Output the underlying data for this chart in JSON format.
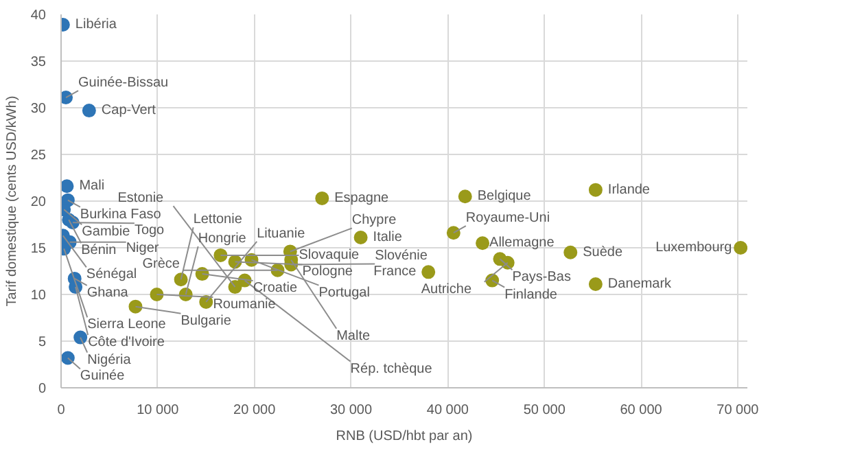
{
  "chart_data": {
    "type": "scatter",
    "xlabel": "RNB (USD/hbt par an)",
    "ylabel": "Tarif domestique (cents USD/kWh)",
    "xlim": [
      0,
      71000
    ],
    "ylim": [
      0,
      40
    ],
    "xticks": [
      {
        "value": 0,
        "label": "0"
      },
      {
        "value": 10000,
        "label": "10 000"
      },
      {
        "value": 20000,
        "label": "20 000"
      },
      {
        "value": 30000,
        "label": "30 000"
      },
      {
        "value": 40000,
        "label": "40 000"
      },
      {
        "value": 50000,
        "label": "50 000"
      },
      {
        "value": 60000,
        "label": "60 000"
      },
      {
        "value": 70000,
        "label": "70 000"
      }
    ],
    "yticks": [
      0,
      5,
      10,
      15,
      20,
      25,
      30,
      35,
      40
    ],
    "grid": true,
    "marker": "circle",
    "series": [
      {
        "color": "#2e75b6",
        "x": [
          200,
          500,
          2900,
          600,
          700,
          300,
          800,
          1200,
          200,
          900,
          300,
          1400,
          1500,
          2000,
          700
        ],
        "values": [
          38.9,
          31.1,
          29.7,
          21.6,
          20.1,
          19.1,
          18.0,
          17.7,
          16.3,
          15.6,
          14.9,
          11.7,
          10.8,
          5.4,
          3.2
        ]
      },
      {
        "color": "#9a9a1a",
        "x": [
          7700,
          9900,
          12900,
          15000,
          12400,
          14600,
          16500,
          18000,
          18000,
          19700,
          22400,
          23700,
          23800,
          23800,
          19000,
          27000,
          31000,
          38000,
          41800,
          55300,
          40600,
          43600,
          52700,
          45400,
          46200,
          44600,
          55300,
          70300
        ],
        "values": [
          8.7,
          10.0,
          10.0,
          9.2,
          11.6,
          12.2,
          14.2,
          13.5,
          10.8,
          13.7,
          12.6,
          14.6,
          13.7,
          13.2,
          11.5,
          20.3,
          16.1,
          12.4,
          20.5,
          21.2,
          16.6,
          15.5,
          14.5,
          13.8,
          13.4,
          11.5,
          11.1,
          15.0
        ]
      }
    ],
    "annotations": [
      {
        "text": "Libéria",
        "x": 200,
        "y": 38.9
      },
      {
        "text": "Guinée-Bissau",
        "x": 500,
        "y": 31.1
      },
      {
        "text": "Cap-Vert",
        "x": 2900,
        "y": 29.7
      },
      {
        "text": "Mali",
        "x": 600,
        "y": 21.6
      },
      {
        "text": "Burkina Faso",
        "x": 700,
        "y": 20.1
      },
      {
        "text": "Gambie",
        "x": 300,
        "y": 19.1
      },
      {
        "text": "Bénin",
        "x": 800,
        "y": 18.0
      },
      {
        "text": "Togo",
        "x": 1200,
        "y": 17.7
      },
      {
        "text": "Sénégal",
        "x": 200,
        "y": 16.3
      },
      {
        "text": "Niger",
        "x": 900,
        "y": 15.6
      },
      {
        "text": "Sierra Leone",
        "x": 300,
        "y": 14.9
      },
      {
        "text": "Ghana",
        "x": 1400,
        "y": 11.7
      },
      {
        "text": "Côte d'Ivoire",
        "x": 1500,
        "y": 10.8
      },
      {
        "text": "Nigéria",
        "x": 2000,
        "y": 5.4
      },
      {
        "text": "Guinée",
        "x": 700,
        "y": 3.2
      },
      {
        "text": "Bulgarie",
        "x": 7700,
        "y": 8.7
      },
      {
        "text": "Roumanie",
        "x": 9900,
        "y": 10.0
      },
      {
        "text": "Hongrie",
        "x": 12900,
        "y": 10.0
      },
      {
        "text": "Lituanie",
        "x": 15000,
        "y": 9.2
      },
      {
        "text": "Lettonie",
        "x": 12400,
        "y": 11.6
      },
      {
        "text": "Croatie",
        "x": 14600,
        "y": 12.2
      },
      {
        "text": "Slovaquie",
        "x": 16500,
        "y": 14.2
      },
      {
        "text": "Pologne",
        "x": 18000,
        "y": 13.5
      },
      {
        "text": "Estonie",
        "x": 18000,
        "y": 10.8
      },
      {
        "text": "Portugal",
        "x": 19700,
        "y": 13.7
      },
      {
        "text": "Grèce",
        "x": 22400,
        "y": 12.6
      },
      {
        "text": "Chypre",
        "x": 23700,
        "y": 14.6
      },
      {
        "text": "Malte",
        "x": 23800,
        "y": 13.7
      },
      {
        "text": "Slovénie",
        "x": 23800,
        "y": 13.2
      },
      {
        "text": "Rép. tchèque",
        "x": 19000,
        "y": 11.5
      },
      {
        "text": "Espagne",
        "x": 27000,
        "y": 20.3
      },
      {
        "text": "Italie",
        "x": 31000,
        "y": 16.1
      },
      {
        "text": "France",
        "x": 38000,
        "y": 12.4
      },
      {
        "text": "Belgique",
        "x": 41800,
        "y": 20.5
      },
      {
        "text": "Irlande",
        "x": 55300,
        "y": 21.2
      },
      {
        "text": "Royaume-Uni",
        "x": 40600,
        "y": 16.6
      },
      {
        "text": "Allemagne",
        "x": 43600,
        "y": 15.5
      },
      {
        "text": "Suède",
        "x": 52700,
        "y": 14.5
      },
      {
        "text": "Pays-Bas",
        "x": 45400,
        "y": 13.8
      },
      {
        "text": "Autriche",
        "x": 46200,
        "y": 13.4
      },
      {
        "text": "Finlande",
        "x": 44600,
        "y": 11.5
      },
      {
        "text": "Danemark",
        "x": 55300,
        "y": 11.1
      },
      {
        "text": "Luxembourg",
        "x": 70300,
        "y": 15.0
      }
    ]
  }
}
